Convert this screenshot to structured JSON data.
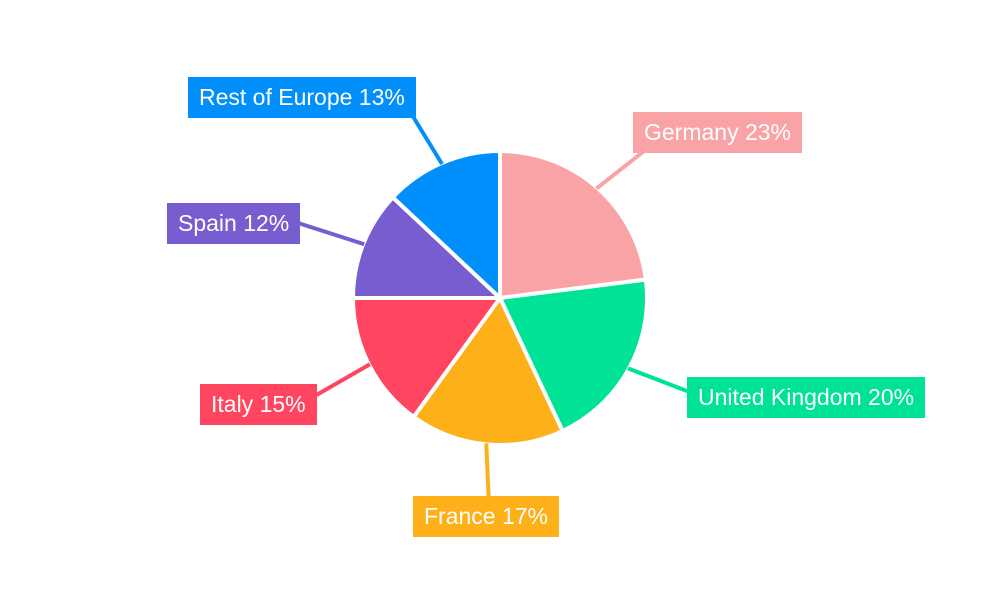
{
  "page": {
    "background": "#FFFFFF"
  },
  "chart_data": {
    "type": "pie",
    "title": "",
    "labels": [
      "Germany",
      "United Kingdom",
      "France",
      "Italy",
      "Spain",
      "Rest of Europe"
    ],
    "values": [
      23,
      20,
      17,
      15,
      12,
      13
    ],
    "unit": "%",
    "display_labels": [
      "Germany 23%",
      "United Kingdom 20%",
      "France 17%",
      "Italy 15%",
      "Spain 12%",
      "Rest of Europe 13%"
    ],
    "colors": [
      "#F9A3A7",
      "#00E396",
      "#FEB019",
      "#FF4560",
      "#775DD0",
      "#008FFB"
    ],
    "label_text_color": "#FFFFFF",
    "slice_border_color": "#FFFFFF",
    "start_angle_deg": 0,
    "direction": "clockwise",
    "legend": "none",
    "label_style": "callout-boxes-with-leader-lines",
    "background": "#FFFFFF"
  }
}
